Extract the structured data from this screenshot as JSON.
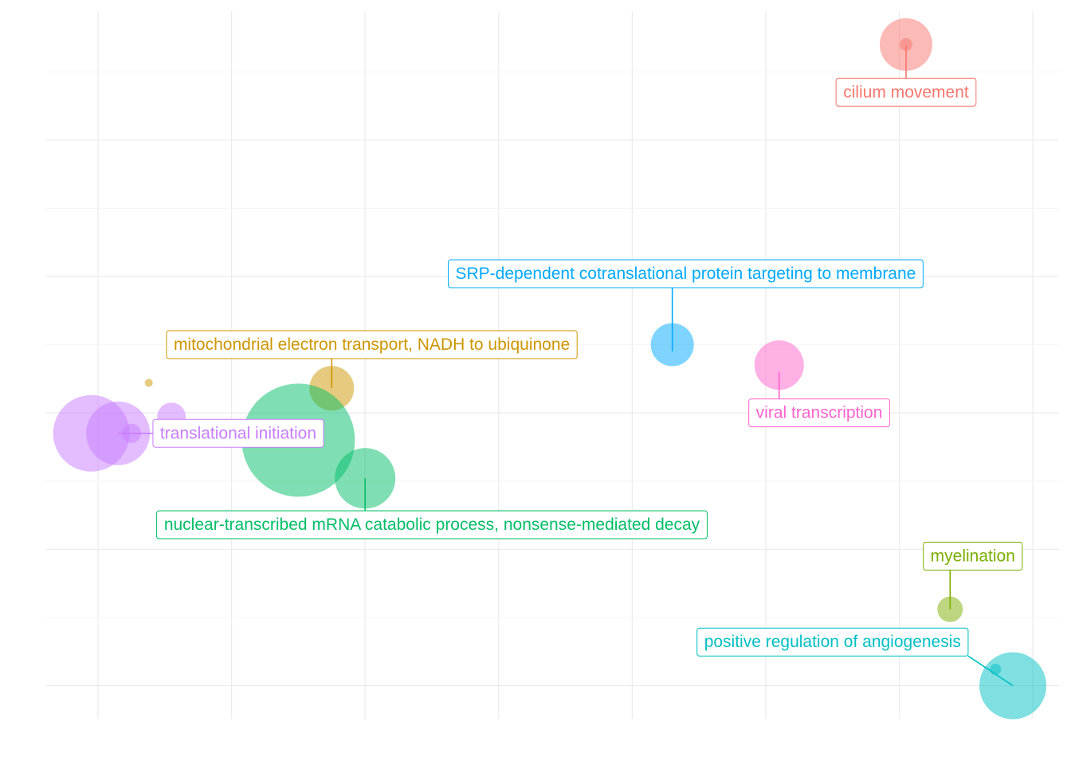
{
  "chart_data": {
    "type": "scatter",
    "title": "",
    "xlabel": "",
    "ylabel": "",
    "x_range": [
      -0.4,
      7.2
    ],
    "y_range": [
      -0.45,
      4.7
    ],
    "x_gridlines": [
      0,
      1,
      2,
      3,
      4,
      5,
      6,
      7
    ],
    "y_gridlines": [
      0,
      1,
      2,
      3,
      4
    ],
    "grid": true,
    "legend": "none",
    "points": [
      {
        "x": 6.05,
        "y": 4.7,
        "size": 33,
        "color": "#F8766D"
      },
      {
        "x": 6.05,
        "y": 4.7,
        "size": 8,
        "color": "#F8766D"
      },
      {
        "x": 4.3,
        "y": 2.5,
        "size": 27,
        "color": "#00A9FF"
      },
      {
        "x": 5.1,
        "y": 2.35,
        "size": 31,
        "color": "#FF61CC"
      },
      {
        "x": 1.75,
        "y": 2.18,
        "size": 28,
        "color": "#CD9600"
      },
      {
        "x": 0.38,
        "y": 2.22,
        "size": 5,
        "color": "#CD9600"
      },
      {
        "x": 1.5,
        "y": 1.8,
        "size": 71,
        "color": "#00BE67"
      },
      {
        "x": 2.0,
        "y": 1.52,
        "size": 38,
        "color": "#00BE67"
      },
      {
        "x": -0.05,
        "y": 1.85,
        "size": 48,
        "color": "#C77CFF"
      },
      {
        "x": 0.15,
        "y": 1.85,
        "size": 40,
        "color": "#C77CFF"
      },
      {
        "x": 0.25,
        "y": 1.85,
        "size": 12,
        "color": "#C77CFF"
      },
      {
        "x": 0.55,
        "y": 1.97,
        "size": 18,
        "color": "#C77CFF"
      },
      {
        "x": 6.38,
        "y": 0.56,
        "size": 16,
        "color": "#7CAE00"
      },
      {
        "x": 6.85,
        "y": 0.0,
        "size": 42,
        "color": "#00BFC4"
      },
      {
        "x": 6.72,
        "y": 0.12,
        "size": 7,
        "color": "#00BFC4"
      }
    ],
    "annotations": [
      {
        "text": "cilium movement",
        "color": "#F8766D",
        "x": 6.05,
        "y": 4.7,
        "lx": 6.05,
        "ly": 4.35
      },
      {
        "text": "SRP-dependent cotranslational protein targeting to membrane",
        "color": "#00A9FF",
        "x": 4.3,
        "y": 2.45,
        "lx": 4.4,
        "ly": 3.02
      },
      {
        "text": "mitochondrial electron transport, NADH to ubiquinone",
        "color": "#CD9600",
        "x": 1.75,
        "y": 2.18,
        "lx": 2.05,
        "ly": 2.5
      },
      {
        "text": "viral transcription",
        "color": "#FF61CC",
        "x": 5.1,
        "y": 2.3,
        "lx": 5.4,
        "ly": 2.0
      },
      {
        "text": "translational initiation",
        "color": "#C77CFF",
        "x": 0.15,
        "y": 1.85,
        "lx": 1.05,
        "ly": 1.85
      },
      {
        "text": "nuclear-transcribed mRNA catabolic process, nonsense-mediated decay",
        "color": "#00BE67",
        "x": 2.0,
        "y": 1.52,
        "lx": 2.5,
        "ly": 1.18
      },
      {
        "text": "myelination",
        "color": "#7CAE00",
        "x": 6.38,
        "y": 0.56,
        "lx": 6.55,
        "ly": 0.95
      },
      {
        "text": "positive regulation of angiogenesis",
        "color": "#00BFC4",
        "x": 6.85,
        "y": 0.0,
        "lx": 5.5,
        "ly": 0.32
      }
    ]
  }
}
